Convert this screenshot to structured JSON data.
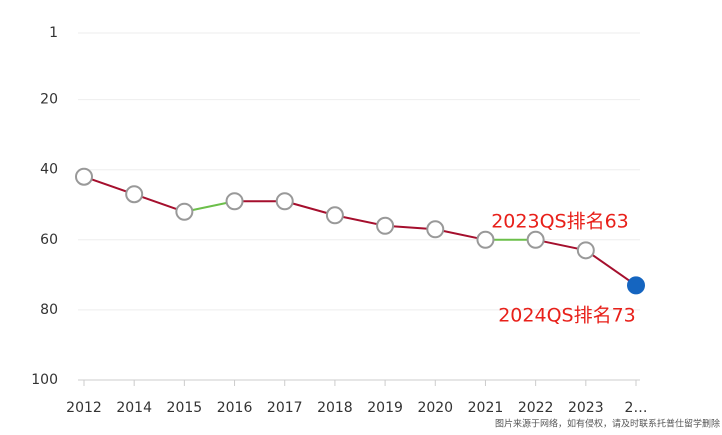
{
  "chart_data": {
    "type": "line",
    "categories": [
      "2012",
      "2014",
      "2015",
      "2016",
      "2017",
      "2018",
      "2019",
      "2020",
      "2021",
      "2022",
      "2023",
      "2…"
    ],
    "series": [
      {
        "name": "QS排名",
        "color": "#a50f2d",
        "values": [
          42,
          47,
          52,
          49,
          49,
          53,
          56,
          57,
          60,
          60,
          63,
          73
        ]
      }
    ],
    "segment_colors": [
      "#a50f2d",
      "#a50f2d",
      "#6cbf4a",
      "#a50f2d",
      "#a50f2d",
      "#a50f2d",
      "#a50f2d",
      "#a50f2d",
      "#6cbf4a",
      "#a50f2d",
      "#a50f2d"
    ],
    "marker_fills": [
      "#ffffff",
      "#ffffff",
      "#ffffff",
      "#ffffff",
      "#ffffff",
      "#ffffff",
      "#ffffff",
      "#ffffff",
      "#ffffff",
      "#ffffff",
      "#ffffff",
      "#1565c0"
    ],
    "ylim": [
      1,
      100
    ],
    "y_inverted": true,
    "yticks": [
      1,
      20,
      40,
      60,
      80,
      100
    ],
    "grid": true,
    "annotations": [
      "2023QS排名63",
      "2024QS排名73"
    ],
    "source_note": "图片来源于网络，如有侵权，请及时联系托普仕留学删除"
  }
}
